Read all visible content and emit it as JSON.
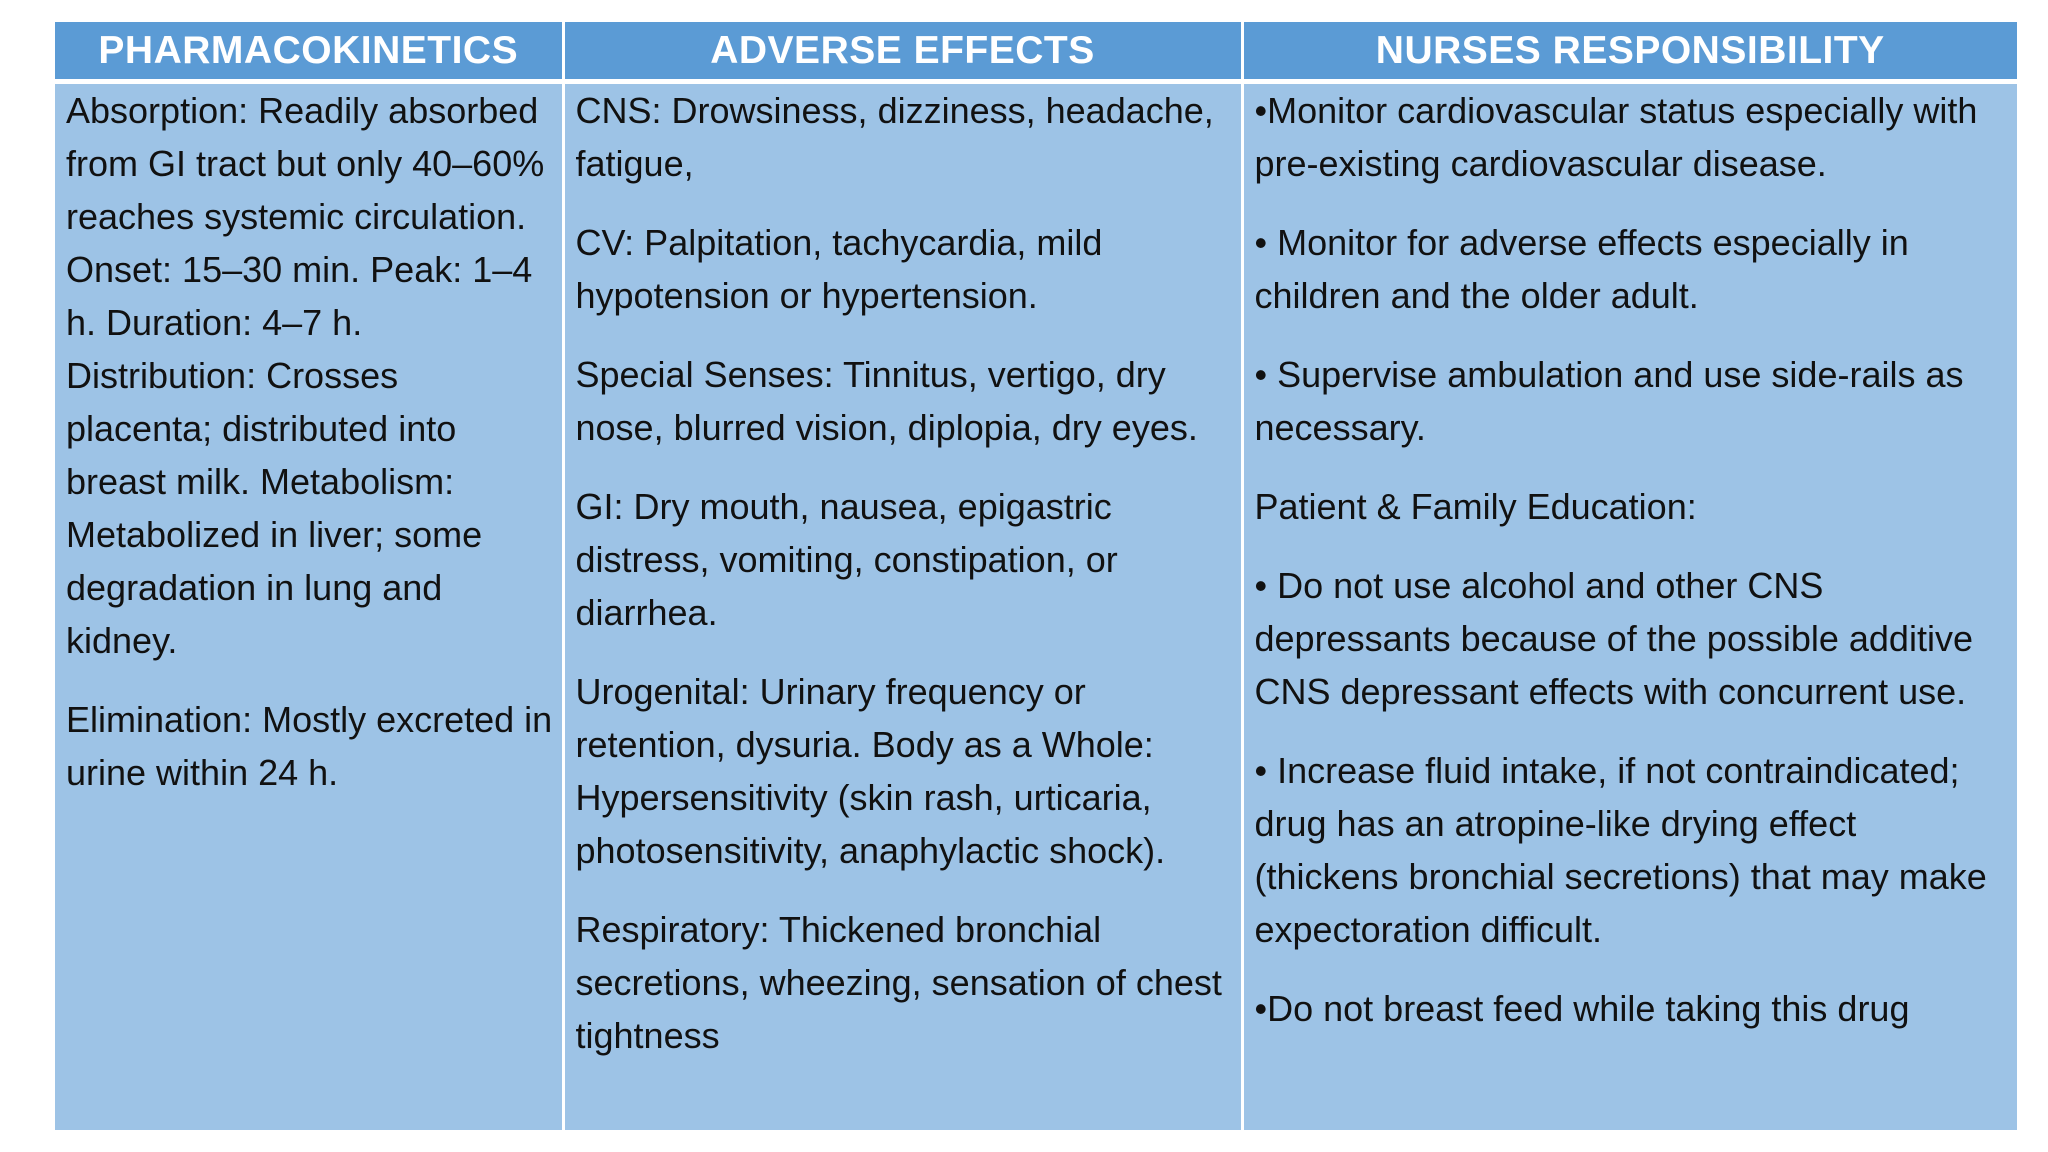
{
  "headers": [
    "PHARMACOKINETICS",
    "ADVERSE EFFECTS",
    "NURSES RESPONSIBILITY"
  ],
  "pharmacokinetics": [
    "Absorption: Readily absorbed from GI tract but only 40–60% reaches systemic circulation. Onset: 15–30 min. Peak: 1–4 h. Duration: 4–7 h. Distribution: Crosses placenta; distributed into breast milk. Metabolism: Metabolized in liver; some degradation in lung and kidney.",
    "Elimination: Mostly excreted in urine within 24 h."
  ],
  "adverse_effects": [
    "CNS: Drowsiness, dizziness, headache, fatigue,",
    "CV: Palpitation, tachycardia, mild hypotension or hypertension.",
    "Special Senses: Tinnitus, vertigo, dry nose, blurred vision, diplopia, dry eyes.",
    "GI: Dry mouth, nausea, epigastric distress, vomiting, constipation, or diarrhea.",
    "Urogenital: Urinary frequency or retention, dysuria. Body as a Whole: Hypersensitivity (skin rash, urticaria, photosensitivity, anaphylactic shock).",
    "Respiratory: Thickened bronchial secretions, wheezing, sensation of chest tightness"
  ],
  "nurses_responsibility": [
    "•Monitor cardiovascular status especially with pre-existing cardiovascular disease.",
    "• Monitor for adverse effects especially in children and the older adult.",
    "• Supervise ambulation and use side-rails as necessary.",
    "Patient & Family Education:",
    "• Do not use alcohol and other CNS depressants because of the possible additive CNS depressant effects with concurrent use.",
    "• Increase fluid intake, if not contraindicated; drug has an atropine-like drying effect (thickens bronchial secretions) that may make expectoration difficult.",
    "•Do not breast feed while taking this drug"
  ],
  "colors": {
    "header_bg": "#5b9bd5",
    "cell_bg": "#9dc3e6",
    "header_text": "#ffffff",
    "cell_text": "#111111"
  }
}
